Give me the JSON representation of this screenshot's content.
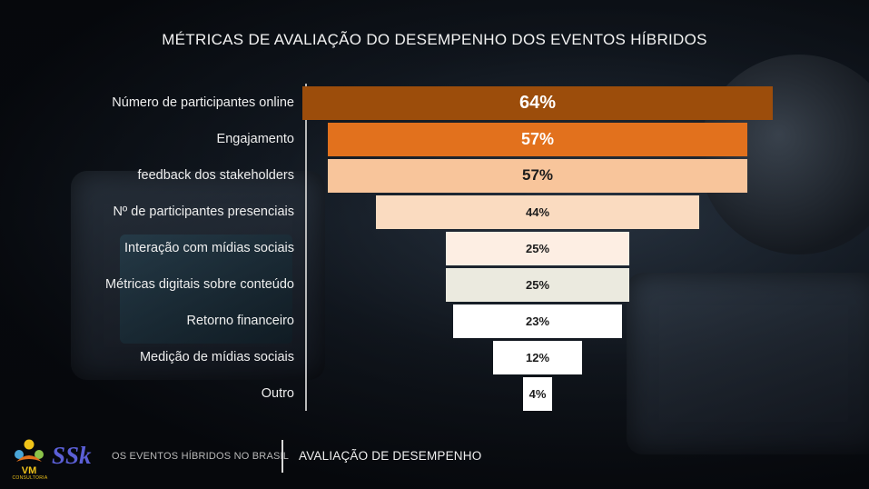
{
  "title": "MÉTRICAS DE AVALIAÇÃO DO DESEMPENHO DOS EVENTOS HÍBRIDOS",
  "colors": {
    "bars": [
      "#9c4d0b",
      "#e2711d",
      "#f8c59b",
      "#fadbc0",
      "#fdeee3",
      "#ebeadf",
      "#ffffff",
      "#ffffff",
      "#ffffff"
    ],
    "value_text_light": "#ffffff",
    "value_text_dark": "#1c1c1c",
    "axis": "#b9b9b9"
  },
  "chart_data": {
    "type": "bar",
    "orientation": "horizontal-centered",
    "title": "MÉTRICAS DE AVALIAÇÃO DO DESEMPENHO DOS EVENTOS HÍBRIDOS",
    "xlabel": "",
    "ylabel": "",
    "unit": "%",
    "xlim": [
      0,
      64
    ],
    "grid": false,
    "categories": [
      "Número de participantes online",
      "Engajamento",
      "feedback dos stakeholders",
      "Nº de participantes presenciais",
      "Interação com mídias sociais",
      "Métricas digitais sobre conteúdo",
      "Retorno financeiro",
      "Medição de mídias sociais",
      "Outro"
    ],
    "values": [
      64,
      57,
      57,
      44,
      25,
      25,
      23,
      12,
      4
    ],
    "value_labels": [
      "64%",
      "57%",
      "57%",
      "44%",
      "25%",
      "25%",
      "23%",
      "12%",
      "4%"
    ]
  },
  "footer": {
    "left_text": "OS EVENTOS HÍBRIDOS NO BRASIL",
    "right_text": "AVALIAÇÃO DE DESEMPENHO",
    "logo_vm_text": "VM",
    "logo_vm_subtext": "CONSULTORIA",
    "logo_ssk_text": "SSk"
  }
}
